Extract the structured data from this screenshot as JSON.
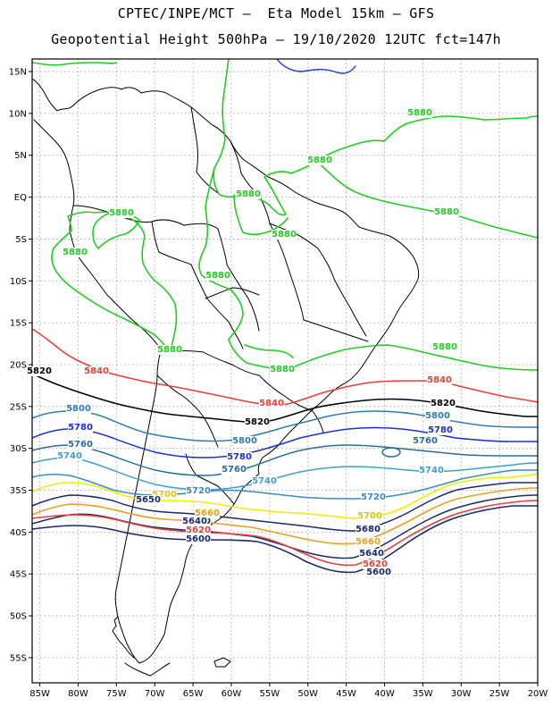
{
  "title_line1": "CPTEC/INPE/MCT –  Eta Model 15km – GFS",
  "title_line2": "Geopotential Height 500hPa – 19/10/2020 12UTC fct=147h",
  "axes": {
    "lat_labels": [
      "15N",
      "10N",
      "5N",
      "EQ",
      "5S",
      "10S",
      "15S",
      "20S",
      "25S",
      "30S",
      "35S",
      "40S",
      "45S",
      "50S",
      "55S"
    ],
    "lat_values": [
      15,
      10,
      5,
      0,
      -5,
      -10,
      -15,
      -20,
      -25,
      -30,
      -35,
      -40,
      -45,
      -50,
      -55
    ],
    "lon_labels": [
      "85W",
      "80W",
      "75W",
      "70W",
      "65W",
      "60W",
      "55W",
      "50W",
      "45W",
      "40W",
      "35W",
      "30W",
      "25W",
      "20W"
    ],
    "lon_values": [
      -85,
      -80,
      -75,
      -70,
      -65,
      -60,
      -55,
      -50,
      -45,
      -40,
      -35,
      -30,
      -25,
      -20
    ],
    "lat_range": [
      -58,
      16.5
    ],
    "lon_range": [
      -86,
      -20
    ]
  },
  "colors": {
    "c5880": "#22cc22",
    "c5840": "#e8403a",
    "c5820": "#000000",
    "c5800": "#2e7fb0",
    "c5780": "#1a2fd8",
    "c5760": "#2a6e98",
    "c5740": "#3ca0c8",
    "c5720": "#3a8cc0",
    "c5700": "#eeee00",
    "c5680": "#e8a020",
    "c5660": "#e8a020",
    "c5640": "#1a2a6a",
    "c5620": "#e8403a",
    "c5600": "#1a2a6a",
    "coast": "#000000",
    "water": "#1a3adc"
  },
  "contour_labels": [
    {
      "text": "5880",
      "color": "#22cc22"
    },
    {
      "text": "5880",
      "color": "#22cc22"
    },
    {
      "text": "5880",
      "color": "#22cc22"
    },
    {
      "text": "5880",
      "color": "#22cc22"
    },
    {
      "text": "5880",
      "color": "#22cc22"
    },
    {
      "text": "5880",
      "color": "#22cc22"
    },
    {
      "text": "5880",
      "color": "#22cc22"
    },
    {
      "text": "5880",
      "color": "#22cc22"
    },
    {
      "text": "5880",
      "color": "#22cc22"
    },
    {
      "text": "5880",
      "color": "#22cc22"
    },
    {
      "text": "5880",
      "color": "#22cc22"
    },
    {
      "text": "5840",
      "color": "#e8403a"
    },
    {
      "text": "5840",
      "color": "#e8403a"
    },
    {
      "text": "5840",
      "color": "#e8403a"
    },
    {
      "text": "5820",
      "color": "#000000"
    },
    {
      "text": "5820",
      "color": "#000000"
    },
    {
      "text": "5820",
      "color": "#000000"
    },
    {
      "text": "5800",
      "color": "#2e7fb0"
    },
    {
      "text": "5800",
      "color": "#2e7fb0"
    },
    {
      "text": "5800",
      "color": "#2e7fb0"
    },
    {
      "text": "5780",
      "color": "#1a2fd8"
    },
    {
      "text": "5780",
      "color": "#1a2fd8"
    },
    {
      "text": "5780",
      "color": "#1a2fd8"
    },
    {
      "text": "5760",
      "color": "#2a6e98"
    },
    {
      "text": "5760",
      "color": "#2a6e98"
    },
    {
      "text": "5760",
      "color": "#2a6e98"
    },
    {
      "text": "5740",
      "color": "#3ca0c8"
    },
    {
      "text": "5740",
      "color": "#3ca0c8"
    },
    {
      "text": "5740",
      "color": "#3ca0c8"
    },
    {
      "text": "5720",
      "color": "#3a8cc0"
    },
    {
      "text": "5720",
      "color": "#3a8cc0"
    },
    {
      "text": "5700",
      "color": "#d8c800"
    },
    {
      "text": "5700",
      "color": "#d8c800"
    },
    {
      "text": "5680",
      "color": "#1a2a6a"
    },
    {
      "text": "5680",
      "color": "#1a2a6a"
    },
    {
      "text": "5660",
      "color": "#e8a020"
    },
    {
      "text": "5660",
      "color": "#e8a020"
    },
    {
      "text": "5640",
      "color": "#1a2a6a"
    },
    {
      "text": "5640",
      "color": "#1a2a6a"
    },
    {
      "text": "5620",
      "color": "#e8403a"
    },
    {
      "text": "5620",
      "color": "#e8403a"
    },
    {
      "text": "5600",
      "color": "#1a2a6a"
    },
    {
      "text": "5600",
      "color": "#1a2a6a"
    },
    {
      "text": "5650",
      "color": "#1a2a6a"
    }
  ]
}
